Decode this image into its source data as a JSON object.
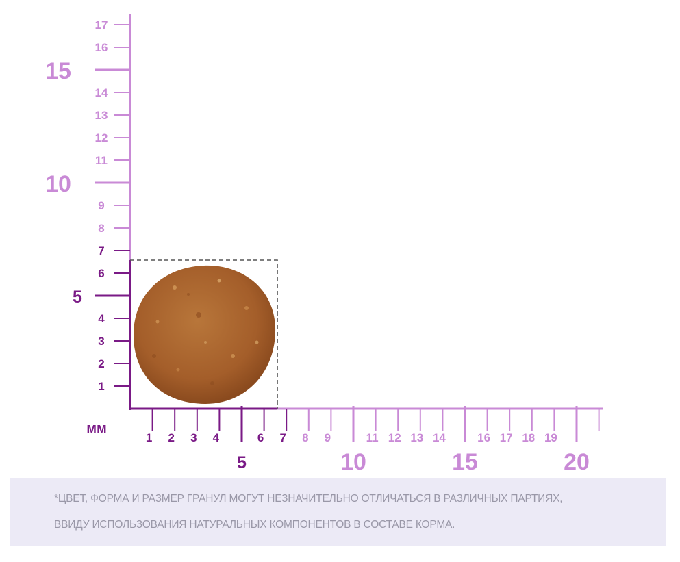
{
  "colors": {
    "dark_purple": "#7a1a86",
    "light_purple": "#c98ad6",
    "kibble": "#a8622c",
    "dashed_box": "#555555",
    "note_background": "#eceaf6",
    "note_text": "#9a98a8"
  },
  "unit_label": "мм",
  "x_axis": {
    "minor_labels": [
      "1",
      "2",
      "3",
      "4",
      "6",
      "7",
      "8",
      "9",
      "11",
      "12",
      "13",
      "14",
      "16",
      "17",
      "18",
      "19"
    ],
    "major_labels": [
      "5",
      "10",
      "15",
      "20"
    ]
  },
  "y_axis": {
    "minor_labels": [
      "1",
      "2",
      "3",
      "4",
      "6",
      "7",
      "8",
      "9",
      "11",
      "12",
      "13",
      "14",
      "16",
      "17"
    ],
    "major_labels": [
      "5",
      "10",
      "15"
    ]
  },
  "granule": {
    "size_mm": 7,
    "icon": "kibble-granule"
  },
  "note": {
    "line1": "*ЦВЕТ, ФОРМА И РАЗМЕР ГРАНУЛ МОГУТ НЕЗНАЧИТЕЛЬНО ОТЛИЧАТЬСЯ В РАЗЛИЧНЫХ ПАРТИЯХ,",
    "line2": "ВВИДУ ИСПОЛЬЗОВАНИЯ НАТУРАЛЬНЫХ КОМПОНЕНТОВ В СОСТАВЕ КОРМА."
  }
}
